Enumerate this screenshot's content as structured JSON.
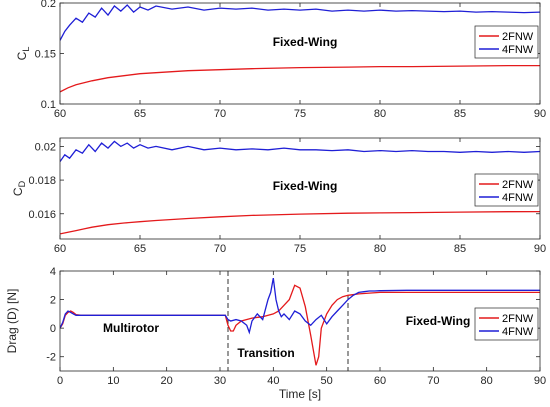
{
  "chart_data": [
    {
      "type": "line",
      "ylabel": "C",
      "ylabel_sub": "L",
      "xlim": [
        60,
        90
      ],
      "ylim": [
        0.1,
        0.2
      ],
      "xticks": [
        60,
        65,
        70,
        75,
        80,
        85,
        90
      ],
      "yticks": [
        0.1,
        0.15,
        0.2
      ],
      "ytick_labels": [
        "0.1",
        "0.15",
        "0.2"
      ],
      "annotation": "Fixed-Wing",
      "legend_position": "top-right",
      "series": [
        {
          "name": "2FNW",
          "color": "#e41a1c",
          "x": [
            60,
            60.5,
            61,
            61.5,
            62,
            63,
            64,
            65,
            66,
            67,
            68,
            70,
            72,
            75,
            78,
            80,
            82,
            85,
            88,
            90
          ],
          "y": [
            0.112,
            0.116,
            0.119,
            0.121,
            0.123,
            0.126,
            0.128,
            0.13,
            0.131,
            0.132,
            0.133,
            0.134,
            0.135,
            0.136,
            0.1365,
            0.137,
            0.137,
            0.1375,
            0.138,
            0.138
          ]
        },
        {
          "name": "4FNW",
          "color": "#1f1fd6",
          "x": [
            60,
            60.3,
            60.6,
            61,
            61.4,
            61.8,
            62.2,
            62.6,
            63,
            63.4,
            63.8,
            64.2,
            64.6,
            65,
            65.5,
            66,
            67,
            68,
            69,
            70,
            71,
            72,
            73,
            74,
            75,
            76,
            77,
            78,
            79,
            80,
            81,
            82,
            83,
            84,
            85,
            86,
            87,
            88,
            89,
            90
          ],
          "y": [
            0.163,
            0.172,
            0.178,
            0.185,
            0.181,
            0.19,
            0.186,
            0.195,
            0.188,
            0.197,
            0.192,
            0.198,
            0.191,
            0.196,
            0.193,
            0.197,
            0.194,
            0.196,
            0.193,
            0.195,
            0.194,
            0.195,
            0.193,
            0.194,
            0.193,
            0.194,
            0.192,
            0.193,
            0.192,
            0.193,
            0.192,
            0.1925,
            0.192,
            0.1915,
            0.192,
            0.191,
            0.1915,
            0.191,
            0.1905,
            0.191
          ]
        }
      ]
    },
    {
      "type": "line",
      "ylabel": "C",
      "ylabel_sub": "D",
      "xlim": [
        60,
        90
      ],
      "ylim": [
        0.0145,
        0.0205
      ],
      "xticks": [
        60,
        65,
        70,
        75,
        80,
        85,
        90
      ],
      "yticks": [
        0.016,
        0.018,
        0.02
      ],
      "ytick_labels": [
        "0.016",
        "0.018",
        "0.02"
      ],
      "annotation": "Fixed-Wing",
      "legend_position": "right",
      "series": [
        {
          "name": "2FNW",
          "color": "#e41a1c",
          "x": [
            60,
            60.5,
            61,
            61.5,
            62,
            63,
            64,
            65,
            66,
            67,
            68,
            70,
            72,
            75,
            78,
            80,
            82,
            85,
            88,
            90
          ],
          "y": [
            0.0148,
            0.0149,
            0.015,
            0.0151,
            0.0152,
            0.01535,
            0.01545,
            0.01553,
            0.0156,
            0.01566,
            0.01572,
            0.01582,
            0.0159,
            0.01598,
            0.01603,
            0.01605,
            0.01607,
            0.0161,
            0.01612,
            0.01613
          ]
        },
        {
          "name": "4FNW",
          "color": "#1f1fd6",
          "x": [
            60,
            60.3,
            60.6,
            61,
            61.4,
            61.8,
            62.2,
            62.6,
            63,
            63.4,
            63.8,
            64.2,
            64.6,
            65,
            65.5,
            66,
            67,
            68,
            69,
            70,
            71,
            72,
            73,
            74,
            75,
            76,
            77,
            78,
            79,
            80,
            81,
            82,
            83,
            84,
            85,
            86,
            87,
            88,
            89,
            90
          ],
          "y": [
            0.0191,
            0.0195,
            0.0193,
            0.0198,
            0.0196,
            0.0201,
            0.0197,
            0.0202,
            0.0199,
            0.0203,
            0.02,
            0.0202,
            0.0199,
            0.0201,
            0.0199,
            0.02,
            0.0198,
            0.02,
            0.0198,
            0.0199,
            0.0198,
            0.01985,
            0.0198,
            0.0199,
            0.0198,
            0.0198,
            0.01975,
            0.0198,
            0.0197,
            0.01975,
            0.0197,
            0.01975,
            0.0197,
            0.0197,
            0.01965,
            0.0197,
            0.01965,
            0.0197,
            0.01965,
            0.0197
          ]
        }
      ]
    },
    {
      "type": "line",
      "xlabel": "Time [s]",
      "ylabel": "Drag (D) [N]",
      "xlim": [
        0,
        90
      ],
      "ylim": [
        -3,
        4
      ],
      "xticks": [
        0,
        10,
        20,
        30,
        40,
        50,
        60,
        70,
        80,
        90
      ],
      "yticks": [
        -2,
        0,
        2,
        4
      ],
      "ytick_labels": [
        "-2",
        "0",
        "2",
        "4"
      ],
      "vlines": [
        31.5,
        54
      ],
      "annotations": [
        "Multirotor",
        "Transition",
        "Fixed-Wing"
      ],
      "legend_position": "right",
      "series": [
        {
          "name": "2FNW",
          "color": "#e41a1c",
          "x": [
            0,
            0.5,
            1,
            1.5,
            2,
            2.5,
            3,
            4,
            10,
            20,
            30,
            31,
            31.5,
            32,
            32.5,
            33,
            34,
            36,
            38,
            40,
            41,
            42,
            43,
            44,
            45,
            46,
            47,
            48,
            48.5,
            49,
            50,
            51,
            52,
            53,
            54,
            56,
            58,
            60,
            65,
            70,
            80,
            90
          ],
          "y": [
            0,
            0.3,
            0.9,
            1.1,
            1.2,
            1.1,
            0.95,
            0.9,
            0.9,
            0.9,
            0.9,
            0.9,
            0.2,
            -0.2,
            -0.2,
            0.2,
            0.5,
            0.7,
            0.8,
            1.0,
            1.2,
            1.6,
            2.0,
            3.0,
            2.8,
            1.5,
            -0.5,
            -2.6,
            -2.0,
            0.0,
            1.0,
            1.6,
            2.0,
            2.2,
            2.3,
            2.4,
            2.45,
            2.5,
            2.5,
            2.5,
            2.5,
            2.5
          ]
        },
        {
          "name": "4FNW",
          "color": "#1f1fd6",
          "x": [
            0,
            0.5,
            1,
            1.5,
            2,
            2.5,
            3,
            4,
            10,
            20,
            30,
            31,
            31.5,
            32,
            33,
            34,
            35,
            35.5,
            36,
            37,
            38,
            39,
            39.5,
            40,
            40.5,
            41,
            41.5,
            42,
            43,
            44,
            45,
            46,
            47,
            48,
            49,
            50,
            51,
            52,
            53,
            54,
            55,
            56,
            57,
            58,
            59,
            60,
            65,
            70,
            80,
            90
          ],
          "y": [
            0,
            0.4,
            1.0,
            1.2,
            1.1,
            1.0,
            0.9,
            0.9,
            0.9,
            0.9,
            0.9,
            0.9,
            0.6,
            0.5,
            0.6,
            0.5,
            0.2,
            -0.3,
            0.5,
            1.0,
            0.6,
            2.0,
            2.5,
            3.5,
            2.0,
            1.2,
            0.8,
            1.0,
            0.6,
            1.2,
            1.0,
            0.5,
            0.2,
            0.6,
            0.9,
            0.3,
            0.8,
            1.2,
            1.6,
            2.0,
            2.3,
            2.5,
            2.55,
            2.6,
            2.6,
            2.62,
            2.65,
            2.65,
            2.65,
            2.65
          ]
        }
      ]
    }
  ]
}
